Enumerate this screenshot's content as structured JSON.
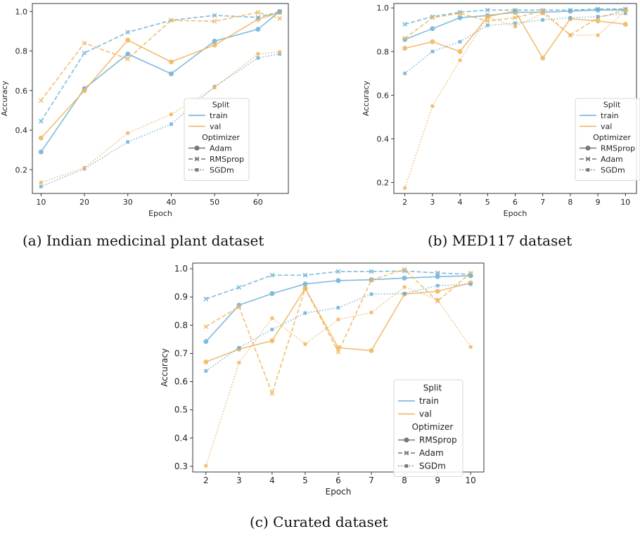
{
  "colors": {
    "train": "#6baed6",
    "val": "#f0b35a"
  },
  "legend_text": {
    "split_title": "Split",
    "optimizer_title": "Optimizer"
  },
  "captions": {
    "a": "(a) Indian medicinal plant dataset",
    "b": "(b) MED117 dataset",
    "c": "(c) Curated dataset"
  },
  "chart_data": [
    {
      "type": "line",
      "panel": "a",
      "xlabel": "Epoch",
      "ylabel": "Accuracy",
      "xlim": [
        8,
        67
      ],
      "ylim": [
        0.08,
        1.04
      ],
      "xticks": [
        10,
        20,
        30,
        40,
        50,
        60
      ],
      "yticks": [
        0.2,
        0.4,
        0.6,
        0.8,
        1.0
      ],
      "grid": false,
      "legend_position": "lower-right",
      "split_labels": [
        "train",
        "val"
      ],
      "optimizer_labels": [
        "Adam",
        "RMSprop",
        "SGDm"
      ],
      "x": [
        10,
        20,
        30,
        40,
        50,
        60,
        65
      ],
      "series": [
        {
          "name": "train",
          "split": "train",
          "optimizer": "Adam",
          "values": [
            0.29,
            0.61,
            0.785,
            0.685,
            0.85,
            0.91,
            1.0
          ]
        },
        {
          "name": "val",
          "split": "val",
          "optimizer": "Adam",
          "values": [
            0.36,
            0.6,
            0.855,
            0.745,
            0.83,
            0.96,
            0.995
          ]
        },
        {
          "name": "train",
          "split": "train",
          "optimizer": "RMSprop",
          "values": [
            0.445,
            0.79,
            0.895,
            0.955,
            0.98,
            0.97,
            0.998
          ]
        },
        {
          "name": "val",
          "split": "val",
          "optimizer": "RMSprop",
          "values": [
            0.55,
            0.84,
            0.76,
            0.955,
            0.95,
            0.995,
            0.965
          ]
        },
        {
          "name": "train",
          "split": "train",
          "optimizer": "SGDm",
          "values": [
            0.115,
            0.205,
            0.34,
            0.43,
            0.62,
            0.765,
            0.785
          ]
        },
        {
          "name": "val",
          "split": "val",
          "optimizer": "SGDm",
          "values": [
            0.135,
            0.21,
            0.385,
            0.48,
            0.615,
            0.785,
            0.795
          ]
        }
      ]
    },
    {
      "type": "line",
      "panel": "b",
      "xlabel": "Epoch",
      "ylabel": "Accuracy",
      "xlim": [
        1.6,
        10.4
      ],
      "ylim": [
        0.15,
        1.02
      ],
      "xticks": [
        2,
        3,
        4,
        5,
        6,
        7,
        8,
        9,
        10
      ],
      "yticks": [
        0.2,
        0.4,
        0.6,
        0.8,
        1.0
      ],
      "grid": false,
      "legend_position": "lower-right",
      "split_labels": [
        "train",
        "val"
      ],
      "optimizer_labels": [
        "RMSprop",
        "Adam",
        "SGDm"
      ],
      "x": [
        2,
        3,
        4,
        5,
        6,
        7,
        8,
        9,
        10
      ],
      "series": [
        {
          "name": "train",
          "split": "train",
          "optimizer": "RMSprop",
          "values": [
            0.855,
            0.905,
            0.955,
            0.965,
            0.98,
            0.98,
            0.985,
            0.99,
            0.99
          ]
        },
        {
          "name": "val",
          "split": "val",
          "optimizer": "RMSprop",
          "values": [
            0.815,
            0.845,
            0.8,
            0.96,
            0.985,
            0.77,
            0.95,
            0.94,
            0.925
          ]
        },
        {
          "name": "train",
          "split": "train",
          "optimizer": "Adam",
          "values": [
            0.925,
            0.96,
            0.98,
            0.99,
            0.99,
            0.99,
            0.99,
            0.995,
            0.995
          ]
        },
        {
          "name": "val",
          "split": "val",
          "optimizer": "Adam",
          "values": [
            0.86,
            0.955,
            0.975,
            0.94,
            0.955,
            0.985,
            0.875,
            0.955,
            0.99
          ]
        },
        {
          "name": "train",
          "split": "train",
          "optimizer": "SGDm",
          "values": [
            0.7,
            0.8,
            0.845,
            0.92,
            0.93,
            0.945,
            0.955,
            0.96,
            0.975
          ]
        },
        {
          "name": "val",
          "split": "val",
          "optimizer": "SGDm",
          "values": [
            0.175,
            0.55,
            0.76,
            0.96,
            0.915,
            0.975,
            0.875,
            0.875,
            0.985
          ]
        }
      ]
    },
    {
      "type": "line",
      "panel": "c",
      "xlabel": "Epoch",
      "ylabel": "Accuracy",
      "xlim": [
        1.6,
        10.4
      ],
      "ylim": [
        0.28,
        1.02
      ],
      "xticks": [
        2,
        3,
        4,
        5,
        6,
        7,
        8,
        9,
        10
      ],
      "yticks": [
        0.3,
        0.4,
        0.5,
        0.6,
        0.7,
        0.8,
        0.9,
        1.0
      ],
      "grid": false,
      "legend_position": "lower-right",
      "split_labels": [
        "train",
        "val"
      ],
      "optimizer_labels": [
        "RMSprop",
        "Adam",
        "SGDm"
      ],
      "x": [
        2,
        3,
        4,
        5,
        6,
        7,
        8,
        9,
        10
      ],
      "series": [
        {
          "name": "train",
          "split": "train",
          "optimizer": "RMSprop",
          "values": [
            0.742,
            0.871,
            0.912,
            0.946,
            0.958,
            0.961,
            0.967,
            0.972,
            0.975
          ]
        },
        {
          "name": "val",
          "split": "val",
          "optimizer": "RMSprop",
          "values": [
            0.67,
            0.715,
            0.745,
            0.93,
            0.72,
            0.71,
            0.91,
            0.92,
            0.95
          ]
        },
        {
          "name": "train",
          "split": "train",
          "optimizer": "Adam",
          "values": [
            0.893,
            0.934,
            0.977,
            0.977,
            0.99,
            0.99,
            0.992,
            0.985,
            0.98
          ]
        },
        {
          "name": "val",
          "split": "val",
          "optimizer": "Adam",
          "values": [
            0.795,
            0.865,
            0.558,
            0.93,
            0.705,
            0.96,
            0.998,
            0.885,
            0.985
          ]
        },
        {
          "name": "train",
          "split": "train",
          "optimizer": "SGDm",
          "values": [
            0.638,
            0.72,
            0.785,
            0.843,
            0.862,
            0.91,
            0.912,
            0.94,
            0.945
          ]
        },
        {
          "name": "val",
          "split": "val",
          "optimizer": "SGDm",
          "values": [
            0.302,
            0.667,
            0.825,
            0.733,
            0.82,
            0.845,
            0.935,
            0.89,
            0.723
          ]
        }
      ]
    }
  ]
}
